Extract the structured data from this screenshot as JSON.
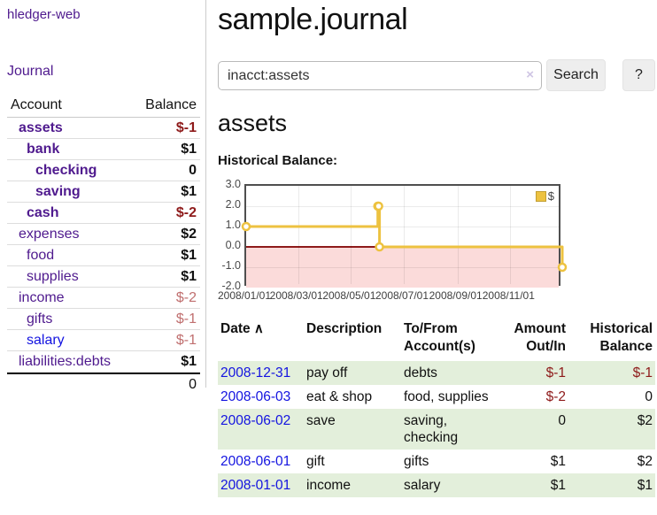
{
  "app": {
    "name": "hledger-web"
  },
  "sidebar": {
    "nav": {
      "journal": "Journal"
    },
    "accounts_header": {
      "account": "Account",
      "balance": "Balance"
    },
    "accounts": [
      {
        "name": "assets",
        "balance": "$-1"
      },
      {
        "name": "bank",
        "balance": "$1"
      },
      {
        "name": "checking",
        "balance": "0"
      },
      {
        "name": "saving",
        "balance": "$1"
      },
      {
        "name": "cash",
        "balance": "$-2"
      },
      {
        "name": "expenses",
        "balance": "$2"
      },
      {
        "name": "food",
        "balance": "$1"
      },
      {
        "name": "supplies",
        "balance": "$1"
      },
      {
        "name": "income",
        "balance": "$-2"
      },
      {
        "name": "gifts",
        "balance": "$-1"
      },
      {
        "name": "salary",
        "balance": "$-1"
      },
      {
        "name": "liabilities:debts",
        "balance": "$1"
      }
    ],
    "total": "0"
  },
  "main": {
    "title": "sample.journal",
    "search": {
      "value": "inacct:assets",
      "clear_icon": "×",
      "button_label": "Search",
      "help_label": "?"
    },
    "account_heading": "assets",
    "chart_label": "Historical Balance:",
    "table": {
      "headers": {
        "date": "Date",
        "sort_icon": "∧",
        "description": "Description",
        "tofrom": "To/From Account(s)",
        "amount": "Amount Out/In",
        "historical": "Historical Balance"
      },
      "rows": [
        {
          "date": "2008-12-31",
          "description": "pay off",
          "accounts": "debts",
          "amount": "$-1",
          "historical": "$-1"
        },
        {
          "date": "2008-06-03",
          "description": "eat & shop",
          "accounts": "food, supplies",
          "amount": "$-2",
          "historical": "0"
        },
        {
          "date": "2008-06-02",
          "description": "save",
          "accounts": "saving, checking",
          "amount": "0",
          "historical": "$2"
        },
        {
          "date": "2008-06-01",
          "description": "gift",
          "accounts": "gifts",
          "amount": "$1",
          "historical": "$2"
        },
        {
          "date": "2008-01-01",
          "description": "income",
          "accounts": "salary",
          "amount": "$1",
          "historical": "$1"
        }
      ]
    }
  },
  "colors": {
    "link_purple": "#4f1a8e",
    "link_blue": "#1313e0",
    "negative_red": "#8e1a1a",
    "negative_rose": "#c06f6f",
    "row_green": "#e3efdb",
    "series_gold": "#EDC240"
  },
  "chart_data": {
    "type": "line",
    "title": "Historical Balance",
    "style": "step-after",
    "x_range": [
      "2008-01-01",
      "2008-12-31"
    ],
    "ylim": [
      -2,
      3
    ],
    "grid": true,
    "legend_position": "top-right",
    "series": [
      {
        "name": "$",
        "color": "#EDC240",
        "markers": true,
        "points": [
          [
            "2008-01-01",
            1
          ],
          [
            "2008-06-01",
            2
          ],
          [
            "2008-06-02",
            2
          ],
          [
            "2008-06-03",
            0
          ],
          [
            "2008-12-31",
            -1
          ]
        ]
      }
    ],
    "y_ticks": [
      {
        "value": 3,
        "label": "3.0"
      },
      {
        "value": 2,
        "label": "2.0"
      },
      {
        "value": 1,
        "label": "1.0"
      },
      {
        "value": 0,
        "label": "0.0"
      },
      {
        "value": -1,
        "label": "-1.0"
      },
      {
        "value": -2,
        "label": "-2.0"
      }
    ],
    "x_ticks": [
      {
        "date": "2008-01-01",
        "label": "2008/01/01"
      },
      {
        "date": "2008-03-01",
        "label": "2008/03/01"
      },
      {
        "date": "2008-05-01",
        "label": "2008/05/01"
      },
      {
        "date": "2008-07-01",
        "label": "2008/07/01"
      },
      {
        "date": "2008-09-01",
        "label": "2008/09/01"
      },
      {
        "date": "2008-11-01",
        "label": "2008/11/01"
      }
    ],
    "zero_line_color": "#8e1a1a",
    "negative_region_color": "#fbdbda"
  }
}
